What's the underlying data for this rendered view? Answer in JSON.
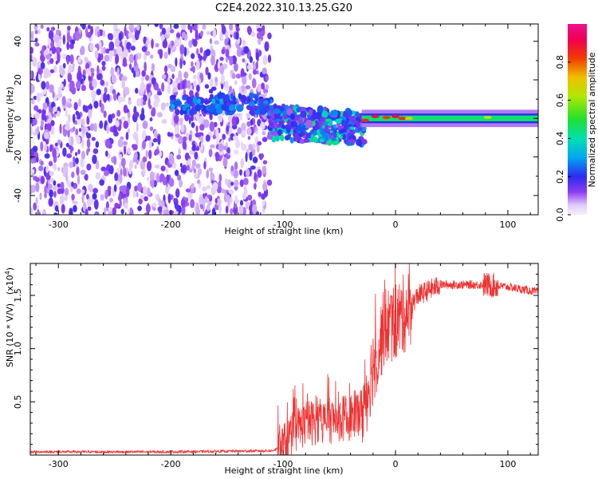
{
  "title": "C2E4.2022.310.13.25.G20",
  "chart_data": [
    {
      "type": "heatmap",
      "xlabel": "Height of straight line (km)",
      "ylabel": "Frequency (Hz)",
      "xlim": [
        -325,
        127
      ],
      "ylim": [
        -50,
        49
      ],
      "x_ticks": [
        -300,
        -200,
        -100,
        0,
        100
      ],
      "x_tick_labels": [
        "-300",
        "-200",
        "-100",
        "0",
        "100"
      ],
      "y_ticks": [
        -40,
        -20,
        0,
        20,
        40
      ],
      "y_tick_labels": [
        "-40",
        "-20",
        "0",
        "20",
        "40"
      ],
      "grid": false,
      "colorbar": {
        "label": "Normalized spectral amplitude",
        "range": [
          0,
          1
        ],
        "ticks": [
          0.0,
          0.2,
          0.4,
          0.6,
          0.8
        ],
        "tick_labels": [
          "0.0",
          "0.2",
          "0.4",
          "0.6",
          "0.8"
        ]
      },
      "regions": [
        {
          "description": "scattered weak signal across all frequencies",
          "x_range": [
            -325,
            -112
          ],
          "freq_range": [
            -50,
            49
          ],
          "amplitude": 0.05
        },
        {
          "description": "band with stronger patches",
          "x_range": [
            -200,
            -110
          ],
          "freq_range": [
            3,
            12
          ],
          "amplitude": 0.2
        },
        {
          "description": "broadened signal with blobs",
          "x_range": [
            -112,
            -28
          ],
          "freq_range": [
            -12,
            10
          ],
          "amplitude": 0.35
        },
        {
          "description": "narrow signal line",
          "x_range": [
            -30,
            127
          ],
          "freq_range": [
            -1.5,
            1.5
          ],
          "amplitude": 0.45
        },
        {
          "description": "strong peaks on line",
          "x_range": [
            -30,
            15
          ],
          "freq_range": [
            -1,
            2
          ],
          "amplitude": 0.9
        }
      ]
    },
    {
      "type": "line",
      "xlabel": "Height of straight line (km)",
      "ylabel": "SNR (10 * V/V)",
      "y_scale_label": "(x10",
      "y_scale_exponent": "4",
      "y_scale_close": ")",
      "xlim": [
        -325,
        127
      ],
      "ylim": [
        0,
        1.8
      ],
      "x_ticks": [
        -300,
        -200,
        -100,
        0,
        100
      ],
      "x_tick_labels": [
        "-300",
        "-200",
        "-100",
        "0",
        "100"
      ],
      "y_ticks": [
        0.5,
        1.0,
        1.5
      ],
      "y_tick_labels": [
        "0.5",
        "1.0",
        "1.5"
      ],
      "grid": false,
      "color": "#f03232",
      "x": [
        -325,
        -200,
        -110,
        -100,
        -90,
        -80,
        -60,
        -40,
        -30,
        -25,
        -20,
        -15,
        -10,
        0,
        10,
        20,
        30,
        40,
        60,
        80,
        100,
        127
      ],
      "y": [
        0.03,
        0.03,
        0.04,
        0.08,
        0.22,
        0.3,
        0.32,
        0.35,
        0.42,
        0.6,
        0.85,
        1.0,
        1.2,
        1.25,
        1.35,
        1.5,
        1.55,
        1.6,
        1.6,
        1.6,
        1.58,
        1.53
      ]
    }
  ]
}
